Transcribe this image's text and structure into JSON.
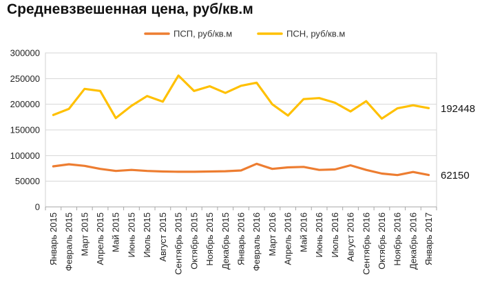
{
  "chart_data": {
    "type": "line",
    "title": "Средневзвешенная цена, руб/кв.м",
    "xlabel": "",
    "ylabel": "",
    "ylim": [
      0,
      300000
    ],
    "yticks": [
      "0",
      "50000",
      "100000",
      "150000",
      "200000",
      "250000",
      "300000"
    ],
    "grid": true,
    "legend_position": "top",
    "categories": [
      "Январь 2015",
      "Февраль 2015",
      "Март 2015",
      "Апрель 2015",
      "Май 2015",
      "Июнь 2015",
      "Июль 2015",
      "Август 2015",
      "Сентябрь 2015",
      "Октябрь 2015",
      "Ноябрь 2015",
      "Декабрь 2015",
      "Январь 2016",
      "Февраль 2016",
      "Март 2016",
      "Апрель 2016",
      "Май 2016",
      "Июнь 2016",
      "Июль 2016",
      "Август 2016",
      "Сентябрь 2016",
      "Октябрь 2016",
      "Ноябрь 2016",
      "Декабрь 2016",
      "Январь 2017"
    ],
    "series": [
      {
        "name": "ПСП, руб/кв.м",
        "color": "#ED7D31",
        "values": [
          79000,
          83000,
          80000,
          74000,
          70000,
          72000,
          70000,
          69000,
          68500,
          68500,
          69000,
          69500,
          71000,
          84000,
          74000,
          77000,
          78000,
          72000,
          73000,
          81000,
          72000,
          65000,
          62000,
          68000,
          62150
        ],
        "end_label": "62150"
      },
      {
        "name": "ПСН, руб/кв.м",
        "color": "#FFC000",
        "values": [
          179000,
          191000,
          230000,
          226000,
          173000,
          197000,
          216000,
          205000,
          256000,
          226000,
          235000,
          222000,
          236000,
          242000,
          200000,
          178000,
          210000,
          212000,
          203000,
          186000,
          206000,
          172000,
          192000,
          198000,
          192448
        ],
        "end_label": "192448"
      }
    ]
  }
}
